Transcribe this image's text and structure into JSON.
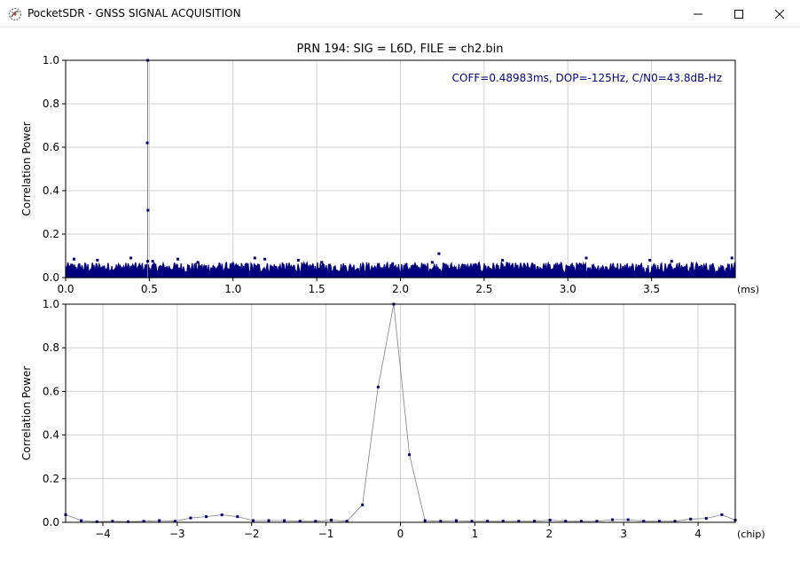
{
  "window": {
    "title": "PocketSDR - GNSS SIGNAL ACQUISITION",
    "icon": "satellite-dish-icon",
    "controls": [
      "minimize-icon",
      "maximize-icon",
      "close-icon"
    ]
  },
  "colors": {
    "marker": "#00007f",
    "line": "#808080",
    "grid": "#d0d0d0",
    "annotation": "#00007f"
  },
  "chart_data": [
    {
      "type": "scatter",
      "title": "PRN 194: SIG = L6D, FILE = ch2.bin",
      "xlabel": "(ms)",
      "ylabel": "Correlation Power",
      "xlim": [
        0.0,
        4.0
      ],
      "ylim": [
        0.0,
        1.0
      ],
      "xticks": [
        "0.0",
        "0.5",
        "1.0",
        "1.5",
        "2.0",
        "2.5",
        "3.0",
        "3.5"
      ],
      "yticks": [
        "0.0",
        "0.2",
        "0.4",
        "0.6",
        "0.8",
        "1.0"
      ],
      "grid": true,
      "annotation": "COFF=0.48983ms, DOP=-125Hz, C/N0=43.8dB-Hz",
      "peak_line_x": 0.48983,
      "series": [
        {
          "x": [
            0.48983,
            0.4877,
            0.4919,
            0.05,
            0.19,
            0.39,
            0.49,
            0.52,
            0.67,
            0.79,
            1.13,
            1.19,
            1.39,
            1.53,
            2.19,
            2.23,
            2.61,
            3.11,
            3.49,
            3.62,
            3.98
          ],
          "y": [
            1.0,
            0.62,
            0.31,
            0.085,
            0.08,
            0.09,
            0.075,
            0.075,
            0.085,
            0.07,
            0.09,
            0.085,
            0.08,
            0.07,
            0.07,
            0.11,
            0.08,
            0.09,
            0.08,
            0.075,
            0.09
          ]
        }
      ],
      "noise_floor": {
        "mean": 0.02,
        "max": 0.07
      }
    },
    {
      "type": "line",
      "title": "",
      "xlabel": "(chip)",
      "ylabel": "Correlation Power",
      "xlim": [
        -4.5,
        4.5
      ],
      "ylim": [
        0.0,
        1.0
      ],
      "xticks": [
        "−4",
        "−3",
        "−2",
        "−1",
        "0",
        "1",
        "2",
        "3",
        "4"
      ],
      "yticks": [
        "0.0",
        "0.2",
        "0.4",
        "0.6",
        "0.8",
        "1.0"
      ],
      "grid": true,
      "series": [
        {
          "x": [
            -4.5,
            -4.29,
            -4.08,
            -3.87,
            -3.66,
            -3.45,
            -3.24,
            -3.03,
            -2.82,
            -2.61,
            -2.4,
            -2.19,
            -1.98,
            -1.77,
            -1.56,
            -1.35,
            -1.14,
            -0.93,
            -0.72,
            -0.51,
            -0.3,
            -0.09,
            0.12,
            0.33,
            0.54,
            0.75,
            0.96,
            1.17,
            1.38,
            1.59,
            1.8,
            2.01,
            2.22,
            2.43,
            2.64,
            2.85,
            3.06,
            3.27,
            3.48,
            3.69,
            3.9,
            4.11,
            4.32,
            4.5
          ],
          "y": [
            0.035,
            0.008,
            0.003,
            0.005,
            0.003,
            0.005,
            0.008,
            0.005,
            0.02,
            0.026,
            0.034,
            0.026,
            0.008,
            0.008,
            0.008,
            0.005,
            0.005,
            0.01,
            0.005,
            0.08,
            0.62,
            1.0,
            0.31,
            0.008,
            0.005,
            0.008,
            0.005,
            0.005,
            0.005,
            0.005,
            0.005,
            0.01,
            0.005,
            0.005,
            0.005,
            0.012,
            0.012,
            0.005,
            0.005,
            0.005,
            0.015,
            0.018,
            0.035,
            0.01
          ]
        }
      ]
    }
  ]
}
